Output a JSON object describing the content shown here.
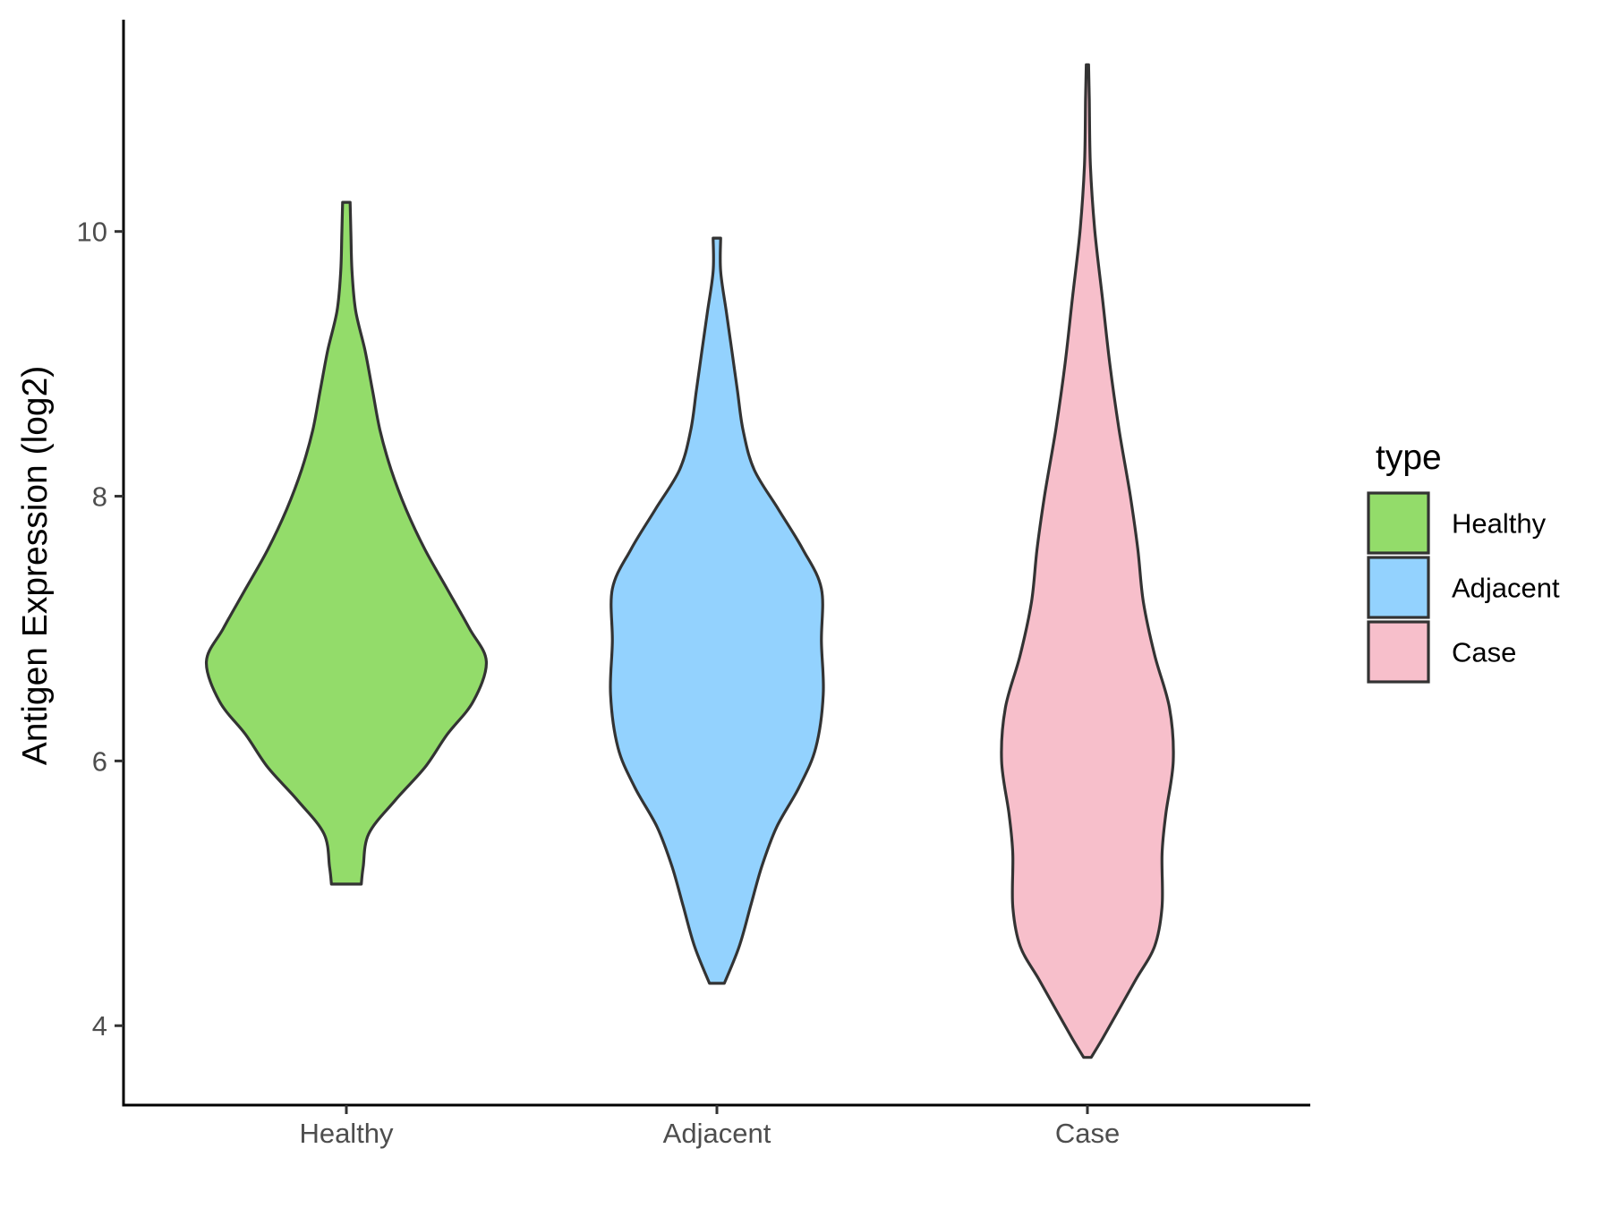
{
  "chart_data": {
    "type": "violin",
    "title": "",
    "xlabel": "",
    "ylabel": "Antigen Expression (log2)",
    "categories": [
      "Healthy",
      "Adjacent",
      "Case"
    ],
    "ylim": [
      3.4,
      11.6
    ],
    "yticks": [
      4,
      6,
      8,
      10
    ],
    "ytick_labels": [
      "4",
      "6",
      "8",
      "10"
    ],
    "grid": false,
    "legend": {
      "title": "type",
      "placement": "right",
      "entries": [
        "Healthy",
        "Adjacent",
        "Case"
      ]
    },
    "colors": {
      "Healthy": "#93dc6a",
      "Adjacent": "#93d2fe",
      "Case": "#f7bfcb",
      "outline": "#333333",
      "axis": "#000000"
    },
    "series": [
      {
        "name": "Healthy",
        "profile": [
          [
            5.07,
            0.04
          ],
          [
            5.2,
            0.045
          ],
          [
            5.45,
            0.06
          ],
          [
            5.7,
            0.13
          ],
          [
            5.95,
            0.21
          ],
          [
            6.2,
            0.27
          ],
          [
            6.45,
            0.34
          ],
          [
            6.75,
            0.375
          ],
          [
            7.0,
            0.33
          ],
          [
            7.3,
            0.27
          ],
          [
            7.6,
            0.21
          ],
          [
            7.9,
            0.16
          ],
          [
            8.2,
            0.12
          ],
          [
            8.5,
            0.09
          ],
          [
            8.8,
            0.07
          ],
          [
            9.1,
            0.05
          ],
          [
            9.4,
            0.025
          ],
          [
            9.7,
            0.015
          ],
          [
            10.0,
            0.012
          ],
          [
            10.22,
            0.01
          ]
        ]
      },
      {
        "name": "Adjacent",
        "profile": [
          [
            4.32,
            0.02
          ],
          [
            4.6,
            0.06
          ],
          [
            4.9,
            0.09
          ],
          [
            5.2,
            0.12
          ],
          [
            5.5,
            0.16
          ],
          [
            5.8,
            0.22
          ],
          [
            6.1,
            0.265
          ],
          [
            6.5,
            0.285
          ],
          [
            6.9,
            0.28
          ],
          [
            7.3,
            0.28
          ],
          [
            7.6,
            0.23
          ],
          [
            7.9,
            0.165
          ],
          [
            8.2,
            0.1
          ],
          [
            8.5,
            0.07
          ],
          [
            8.8,
            0.055
          ],
          [
            9.1,
            0.04
          ],
          [
            9.4,
            0.025
          ],
          [
            9.7,
            0.01
          ],
          [
            9.95,
            0.01
          ]
        ]
      },
      {
        "name": "Case",
        "profile": [
          [
            3.76,
            0.01
          ],
          [
            3.9,
            0.04
          ],
          [
            4.1,
            0.08
          ],
          [
            4.35,
            0.13
          ],
          [
            4.6,
            0.18
          ],
          [
            4.9,
            0.2
          ],
          [
            5.3,
            0.2
          ],
          [
            5.6,
            0.21
          ],
          [
            6.0,
            0.23
          ],
          [
            6.4,
            0.22
          ],
          [
            6.8,
            0.18
          ],
          [
            7.2,
            0.15
          ],
          [
            7.6,
            0.135
          ],
          [
            8.0,
            0.115
          ],
          [
            8.5,
            0.085
          ],
          [
            9.0,
            0.06
          ],
          [
            9.5,
            0.04
          ],
          [
            10.0,
            0.02
          ],
          [
            10.5,
            0.008
          ],
          [
            11.0,
            0.005
          ],
          [
            11.26,
            0.003
          ]
        ]
      }
    ]
  }
}
